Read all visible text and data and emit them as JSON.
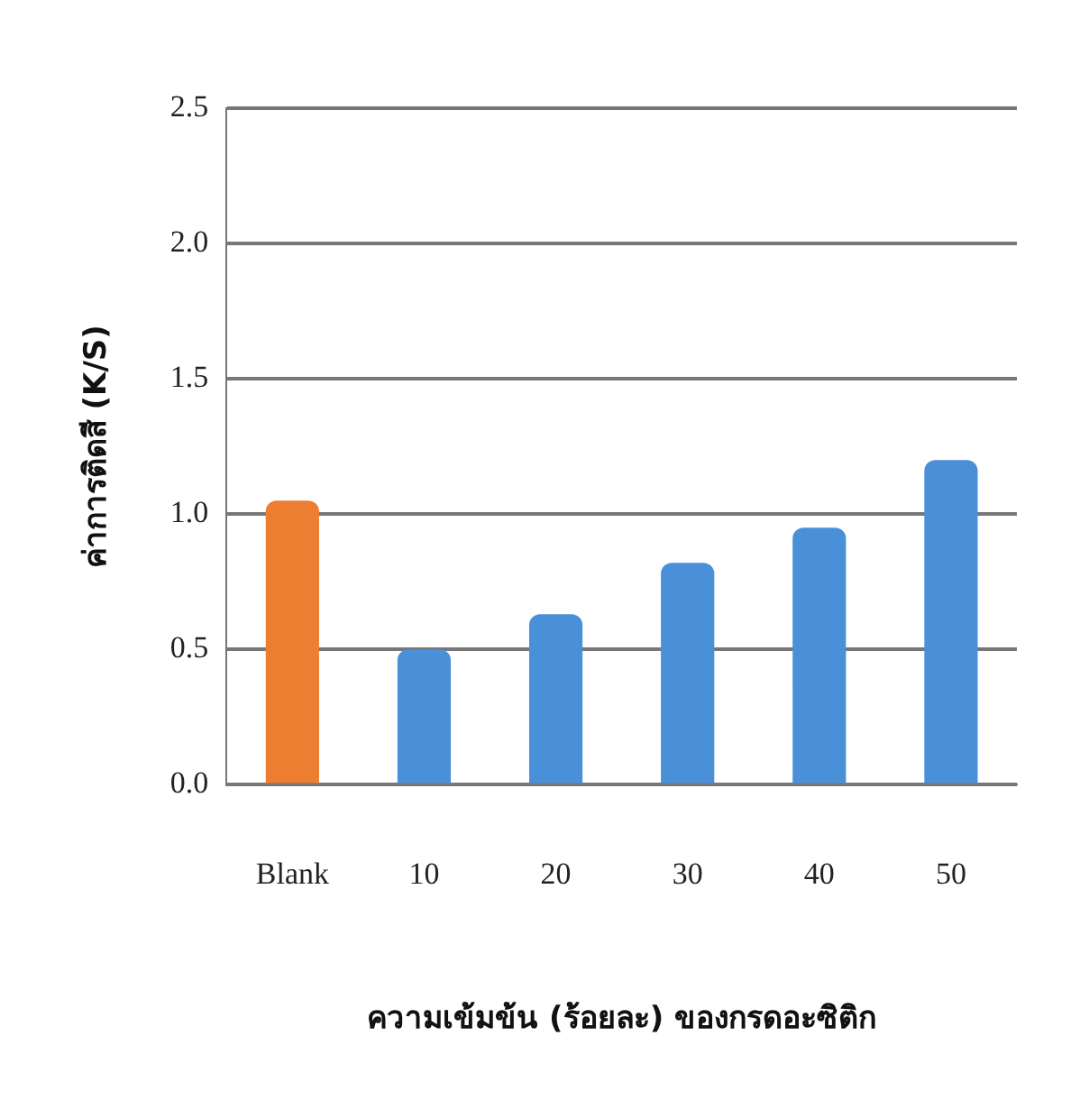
{
  "chart_data": {
    "type": "bar",
    "xlabel": "ความเข้มข้น (ร้อยละ) ของกรดอะซิติก",
    "ylabel": "ค่าการติดสี (K/S)",
    "categories": [
      "Blank",
      "10",
      "20",
      "30",
      "40",
      "50"
    ],
    "values": [
      1.05,
      0.5,
      0.63,
      0.82,
      0.95,
      1.2
    ],
    "colors": [
      "#ed7d31",
      "#4a90d9",
      "#4a90d9",
      "#4a90d9",
      "#4a90d9",
      "#4a90d9"
    ],
    "ylim": [
      0,
      2.5
    ],
    "yticks": [
      {
        "value": 0,
        "label": "0.0"
      },
      {
        "value": 0.5,
        "label": "0.5"
      },
      {
        "value": 1,
        "label": "1.0"
      },
      {
        "value": 1.5,
        "label": "1.5"
      },
      {
        "value": 2,
        "label": "2.0"
      },
      {
        "value": 2.5,
        "label": "2.5"
      }
    ],
    "grid": "y"
  }
}
